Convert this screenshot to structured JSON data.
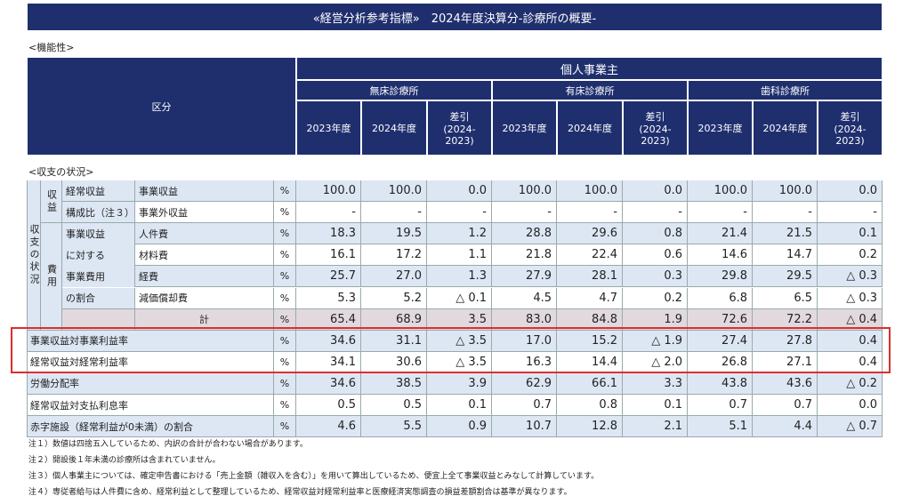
{
  "title": "«経営分析参考指標»　2024年度決算分-診療所の概要-",
  "section1": "<機能性>",
  "header": {
    "category_label": "区分",
    "group": "個人事業主",
    "subgroups": [
      "無床診療所",
      "有床診療所",
      "歯科診療所"
    ],
    "columns": [
      "2023年度",
      "2024年度",
      "差引\n(2024-\n2023)"
    ]
  },
  "section2": "<収支の状況>",
  "side_labels": {
    "outer": "収支の状況",
    "revenue": "収益",
    "expense": "費用"
  },
  "rows": [
    {
      "sublabel": "経常収益",
      "item": "事業収益",
      "unit": "%",
      "values": [
        "100.0",
        "100.0",
        "0.0",
        "100.0",
        "100.0",
        "0.0",
        "100.0",
        "100.0",
        "0.0"
      ]
    },
    {
      "sublabel": "構成比（注３）",
      "item": "事業外収益",
      "unit": "%",
      "values": [
        "-",
        "-",
        "-",
        "-",
        "-",
        "-",
        "-",
        "-",
        "-"
      ]
    },
    {
      "sublabel": "事業収益",
      "item": "人件費",
      "unit": "%",
      "values": [
        "18.3",
        "19.5",
        "1.2",
        "28.8",
        "29.6",
        "0.8",
        "21.4",
        "21.5",
        "0.1"
      ]
    },
    {
      "sublabel": "に対する",
      "item": "材料費",
      "unit": "%",
      "values": [
        "16.1",
        "17.2",
        "1.1",
        "21.8",
        "22.4",
        "0.6",
        "14.6",
        "14.7",
        "0.2"
      ]
    },
    {
      "sublabel": "事業費用",
      "item": "経費",
      "unit": "%",
      "values": [
        "25.7",
        "27.0",
        "1.3",
        "27.9",
        "28.1",
        "0.3",
        "29.8",
        "29.5",
        "△ 0.3"
      ]
    },
    {
      "sublabel": "の割合",
      "item": "減価償却費",
      "unit": "%",
      "values": [
        "5.3",
        "5.2",
        "△ 0.1",
        "4.5",
        "4.7",
        "0.2",
        "6.8",
        "6.5",
        "△ 0.3"
      ]
    },
    {
      "item": "計",
      "unit": "%",
      "values": [
        "65.4",
        "68.9",
        "3.5",
        "83.0",
        "84.8",
        "1.9",
        "72.6",
        "72.2",
        "△ 0.4"
      ]
    },
    {
      "item": "事業収益対事業利益率",
      "unit": "%",
      "values": [
        "34.6",
        "31.1",
        "△ 3.5",
        "17.0",
        "15.2",
        "△ 1.9",
        "27.4",
        "27.8",
        "0.4"
      ]
    },
    {
      "item": "経常収益対経常利益率",
      "unit": "%",
      "values": [
        "34.1",
        "30.6",
        "△ 3.5",
        "16.3",
        "14.4",
        "△ 2.0",
        "26.8",
        "27.1",
        "0.4"
      ]
    },
    {
      "item": "労働分配率",
      "unit": "%",
      "values": [
        "34.6",
        "38.5",
        "3.9",
        "62.9",
        "66.1",
        "3.3",
        "43.8",
        "43.6",
        "△ 0.2"
      ]
    },
    {
      "item": "経常収益対支払利息率",
      "unit": "%",
      "values": [
        "0.5",
        "0.5",
        "0.1",
        "0.7",
        "0.8",
        "0.1",
        "0.7",
        "0.7",
        "0.0"
      ]
    },
    {
      "item": "赤字施設（経常利益が0未満）の割合",
      "unit": "%",
      "values": [
        "4.6",
        "5.5",
        "0.9",
        "10.7",
        "12.8",
        "2.1",
        "5.1",
        "4.4",
        "△ 0.7"
      ]
    }
  ],
  "notes": [
    "注１）数値は四捨五入しているため、内訳の合計が合わない場合があります。",
    "注２）開設後１年未満の診療所は含まれていません。",
    "注３）個人事業主については、確定申告書における「売上金額（雑収入を含む）」を用いて算出しているため、便宜上全て事業収益とみなして計算しています。",
    "注４）専従者給与は人件費に含め、経常利益として整理しているため、経常収益対経常利益率と医療経済実態調査の損益差額割合は基準が異なります。"
  ]
}
